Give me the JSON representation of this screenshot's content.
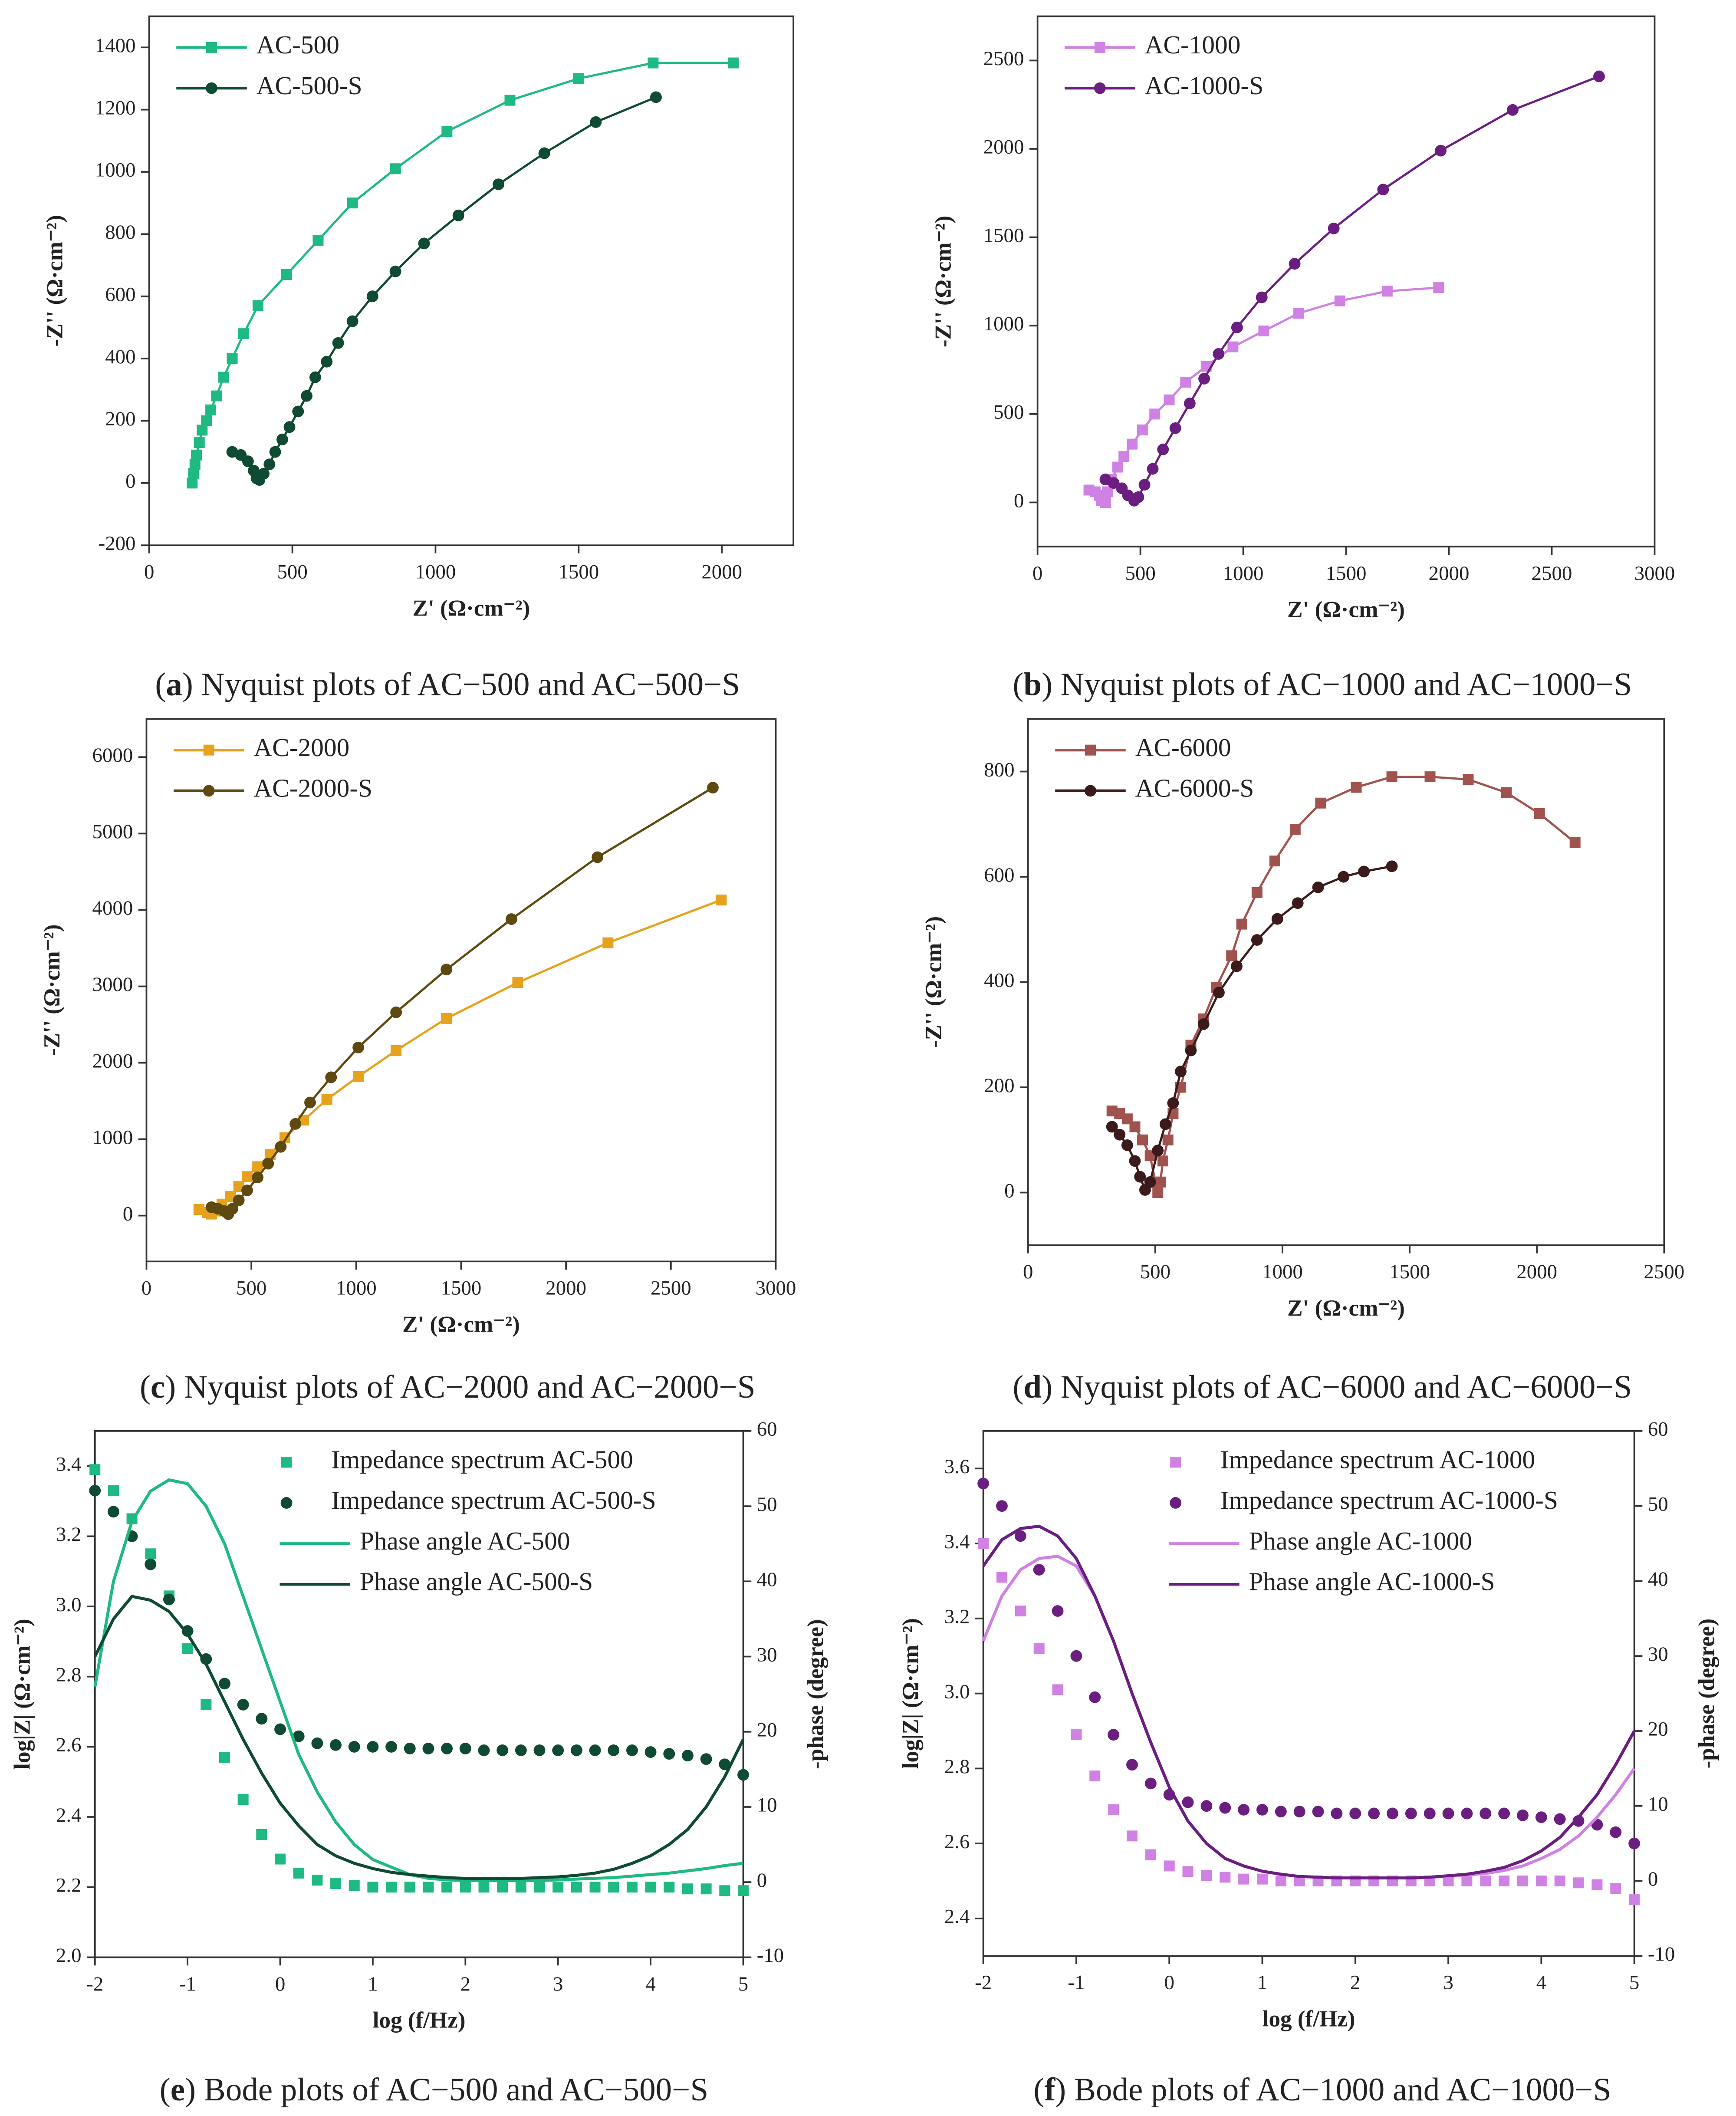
{
  "chart_data": [
    {
      "type": "line",
      "legend": "upper left",
      "caption_parts": [
        "(",
        "a",
        ") Nyquist plots of AC−500 and AC−500−S"
      ],
      "xlabel": "Z' (Ω·cm⁻²)",
      "ylabel": "-Z'' (Ω·cm⁻²)",
      "xlim": [
        0,
        2250
      ],
      "xticks": [
        0,
        500,
        1000,
        1500,
        2000
      ],
      "ylim": [
        -200,
        1500
      ],
      "yticks": [
        -200,
        0,
        200,
        400,
        600,
        800,
        1000,
        1200,
        1400
      ],
      "series": [
        {
          "name": "AC-500",
          "color": "#1fb982",
          "marker": "square",
          "mode": "lines+markers",
          "x": [
            150,
            155,
            160,
            165,
            175,
            185,
            200,
            215,
            235,
            260,
            290,
            330,
            380,
            480,
            590,
            710,
            860,
            1040,
            1260,
            1500,
            1760,
            2040
          ],
          "values": [
            0,
            30,
            60,
            90,
            130,
            170,
            200,
            235,
            280,
            340,
            400,
            480,
            570,
            670,
            780,
            900,
            1010,
            1130,
            1230,
            1300,
            1350,
            1350
          ]
        },
        {
          "name": "AC-500-S",
          "color": "#0f4a33",
          "marker": "circle",
          "mode": "lines+markers",
          "x": [
            290,
            320,
            345,
            365,
            375,
            385,
            400,
            420,
            440,
            465,
            490,
            520,
            550,
            580,
            620,
            660,
            710,
            780,
            860,
            960,
            1080,
            1220,
            1380,
            1560,
            1770
          ],
          "values": [
            100,
            90,
            70,
            40,
            15,
            10,
            30,
            60,
            100,
            140,
            180,
            230,
            280,
            340,
            390,
            450,
            520,
            600,
            680,
            770,
            860,
            960,
            1060,
            1160,
            1240
          ]
        }
      ]
    },
    {
      "type": "line",
      "legend": "upper left",
      "caption_parts": [
        "(",
        "b",
        ") Nyquist plots of AC−1000 and AC−1000−S"
      ],
      "xlabel": "Z' (Ω·cm⁻²)",
      "ylabel": "-Z'' (Ω·cm⁻²)",
      "xlim": [
        0,
        3000
      ],
      "xticks": [
        0,
        500,
        1000,
        1500,
        2000,
        2500,
        3000
      ],
      "ylim": [
        -250,
        2750
      ],
      "yticks": [
        0,
        500,
        1000,
        1500,
        2000,
        2500
      ],
      "series": [
        {
          "name": "AC-1000",
          "color": "#cf82e3",
          "marker": "square",
          "mode": "lines+markers",
          "x": [
            250,
            280,
            300,
            310,
            330,
            340,
            360,
            390,
            420,
            460,
            510,
            570,
            640,
            720,
            820,
            950,
            1100,
            1270,
            1470,
            1700,
            1950
          ],
          "values": [
            70,
            60,
            40,
            10,
            0,
            60,
            130,
            200,
            260,
            330,
            410,
            500,
            580,
            680,
            770,
            880,
            970,
            1070,
            1140,
            1195,
            1215
          ]
        },
        {
          "name": "AC-1000-S",
          "color": "#6a1f80",
          "marker": "circle",
          "mode": "lines+markers",
          "x": [
            330,
            370,
            410,
            440,
            470,
            490,
            520,
            560,
            610,
            670,
            740,
            810,
            880,
            970,
            1090,
            1250,
            1440,
            1680,
            1960,
            2310,
            2730
          ],
          "values": [
            130,
            110,
            80,
            40,
            10,
            30,
            100,
            190,
            300,
            420,
            560,
            700,
            840,
            990,
            1160,
            1350,
            1550,
            1770,
            1990,
            2220,
            2410
          ]
        }
      ]
    },
    {
      "type": "line",
      "legend": "upper left",
      "caption_parts": [
        "(",
        "c",
        ") Nyquist plots of AC−2000 and AC−2000−S"
      ],
      "xlabel": "Z' (Ω·cm⁻²)",
      "ylabel": "-Z'' (Ω·cm⁻²)",
      "xlim": [
        0,
        3000
      ],
      "xticks": [
        0,
        500,
        1000,
        1500,
        2000,
        2500,
        3000
      ],
      "ylim": [
        -600,
        6500
      ],
      "yticks": [
        0,
        1000,
        2000,
        3000,
        4000,
        5000,
        6000
      ],
      "series": [
        {
          "name": "AC-2000",
          "color": "#e6a21c",
          "marker": "square",
          "mode": "lines+markers",
          "x": [
            250,
            290,
            310,
            330,
            360,
            400,
            440,
            480,
            530,
            590,
            660,
            750,
            860,
            1010,
            1190,
            1430,
            1770,
            2200,
            2740
          ],
          "values": [
            80,
            40,
            20,
            60,
            150,
            250,
            380,
            510,
            640,
            800,
            1020,
            1250,
            1520,
            1820,
            2160,
            2580,
            3050,
            3570,
            4130
          ]
        },
        {
          "name": "AC-2000-S",
          "color": "#5e4910",
          "marker": "circle",
          "mode": "lines+markers",
          "x": [
            310,
            340,
            370,
            390,
            410,
            440,
            480,
            530,
            580,
            640,
            710,
            780,
            880,
            1010,
            1190,
            1430,
            1740,
            2150,
            2700
          ],
          "values": [
            110,
            90,
            60,
            20,
            90,
            200,
            330,
            500,
            680,
            900,
            1200,
            1480,
            1810,
            2200,
            2660,
            3220,
            3880,
            4690,
            5600
          ]
        }
      ]
    },
    {
      "type": "line",
      "legend": "upper left",
      "caption_parts": [
        "(",
        "d",
        ") Nyquist plots of AC−6000 and AC−6000−S"
      ],
      "xlabel": "Z' (Ω·cm⁻²)",
      "ylabel": "-Z'' (Ω·cm⁻²)",
      "xlim": [
        0,
        2500
      ],
      "xticks": [
        0,
        500,
        1000,
        1500,
        2000,
        2500
      ],
      "ylim": [
        -100,
        900
      ],
      "yticks": [
        0,
        200,
        400,
        600,
        800
      ],
      "series": [
        {
          "name": "AC-6000",
          "color": "#a0524f",
          "marker": "square",
          "mode": "lines+markers",
          "x": [
            330,
            360,
            390,
            420,
            450,
            480,
            500,
            510,
            520,
            530,
            550,
            570,
            600,
            640,
            690,
            740,
            800,
            840,
            900,
            970,
            1050,
            1150,
            1290,
            1430,
            1580,
            1730,
            1880,
            2010,
            2150
          ],
          "values": [
            155,
            150,
            140,
            125,
            100,
            70,
            20,
            0,
            20,
            60,
            100,
            150,
            200,
            280,
            330,
            390,
            450,
            510,
            570,
            630,
            690,
            740,
            770,
            790,
            790,
            785,
            760,
            720,
            665
          ]
        },
        {
          "name": "AC-6000-S",
          "color": "#3a1a1a",
          "marker": "circle",
          "mode": "lines+markers",
          "x": [
            330,
            360,
            390,
            420,
            440,
            460,
            480,
            510,
            540,
            570,
            600,
            640,
            690,
            750,
            820,
            900,
            980,
            1060,
            1140,
            1240,
            1320,
            1430
          ],
          "values": [
            125,
            110,
            90,
            60,
            30,
            5,
            20,
            80,
            130,
            170,
            230,
            270,
            320,
            380,
            430,
            480,
            520,
            550,
            580,
            600,
            610,
            620
          ]
        }
      ]
    },
    {
      "type": "line",
      "legend": "upper center",
      "caption_parts": [
        "(",
        "e",
        ") Bode plots of AC−500 and AC−500−S"
      ],
      "xlabel": "log (f/Hz)",
      "ylabel": "log|Z| (Ω·cm⁻²)",
      "y2label": "-phase (degree)",
      "xlim": [
        -2,
        5
      ],
      "xticks": [
        -2,
        -1,
        0,
        1,
        2,
        3,
        4,
        5
      ],
      "ylim": [
        2.0,
        3.5
      ],
      "yticks": [
        {
          "value": 2,
          "label": "2.0"
        },
        2.2,
        2.4,
        2.6,
        2.8,
        {
          "value": 3,
          "label": "3.0"
        },
        3.2,
        3.4
      ],
      "y2lim": [
        -10,
        60
      ],
      "y2ticks": [
        -10,
        0,
        10,
        20,
        30,
        40,
        50,
        60
      ],
      "x": [
        -2,
        -1.8,
        -1.6,
        -1.4,
        -1.2,
        -1,
        -0.8,
        -0.6,
        -0.4,
        -0.2,
        0,
        0.2,
        0.4,
        0.6,
        0.8,
        1,
        1.2,
        1.4,
        1.6,
        1.8,
        2,
        2.2,
        2.4,
        2.6,
        2.8,
        3,
        3.2,
        3.4,
        3.6,
        3.8,
        4,
        4.2,
        4.4,
        4.6,
        4.8,
        5
      ],
      "series": [
        {
          "name": "Impedance spectrum AC-500",
          "color": "#1fb982",
          "marker": "square",
          "mode": "markers",
          "values": [
            3.39,
            3.33,
            3.25,
            3.15,
            3.03,
            2.88,
            2.72,
            2.57,
            2.45,
            2.35,
            2.28,
            2.24,
            2.22,
            2.21,
            2.205,
            2.2,
            2.2,
            2.2,
            2.2,
            2.2,
            2.2,
            2.2,
            2.2,
            2.2,
            2.2,
            2.2,
            2.2,
            2.2,
            2.2,
            2.2,
            2.2,
            2.2,
            2.195,
            2.195,
            2.19,
            2.19
          ]
        },
        {
          "name": "Impedance spectrum AC-500-S",
          "color": "#0f4a33",
          "marker": "circle",
          "mode": "markers",
          "values": [
            3.33,
            3.27,
            3.2,
            3.12,
            3.02,
            2.93,
            2.85,
            2.78,
            2.72,
            2.68,
            2.65,
            2.63,
            2.61,
            2.605,
            2.6,
            2.6,
            2.6,
            2.595,
            2.595,
            2.595,
            2.595,
            2.59,
            2.59,
            2.59,
            2.59,
            2.59,
            2.59,
            2.59,
            2.59,
            2.59,
            2.585,
            2.58,
            2.575,
            2.565,
            2.55,
            2.52
          ]
        },
        {
          "name": "Phase angle AC-500",
          "color": "#1fb982",
          "mode": "lines",
          "axis": "y2",
          "values": [
            26,
            40,
            48,
            52,
            53.5,
            53,
            50,
            45,
            38,
            31,
            24,
            17,
            12,
            8,
            5,
            3,
            2,
            1,
            0.5,
            0.3,
            0.2,
            0.2,
            0.2,
            0.2,
            0.2,
            0.3,
            0.4,
            0.5,
            0.6,
            0.8,
            1,
            1.2,
            1.5,
            1.8,
            2.2,
            2.5
          ]
        },
        {
          "name": "Phase angle AC-500-S",
          "color": "#0f4a33",
          "mode": "lines",
          "axis": "y2",
          "values": [
            30,
            35,
            38,
            37.5,
            36,
            33,
            29,
            24,
            19,
            14.5,
            10.5,
            7.5,
            5,
            3.5,
            2.5,
            1.8,
            1.3,
            1,
            0.8,
            0.6,
            0.5,
            0.5,
            0.5,
            0.5,
            0.6,
            0.7,
            0.9,
            1.2,
            1.7,
            2.5,
            3.5,
            5,
            7,
            10,
            14,
            19
          ]
        }
      ]
    },
    {
      "type": "line",
      "legend": "upper center",
      "caption_parts": [
        "(",
        "f",
        ") Bode plots of AC−1000 and AC−1000−S"
      ],
      "xlabel": "log (f/Hz)",
      "ylabel": "log|Z| (Ω·cm⁻²)",
      "y2label": "-phase (degree)",
      "xlim": [
        -2,
        5
      ],
      "xticks": [
        -2,
        -1,
        0,
        1,
        2,
        3,
        4,
        5
      ],
      "ylim": [
        2.3,
        3.7
      ],
      "yticks": [
        2.4,
        2.6,
        2.8,
        {
          "value": 3,
          "label": "3.0"
        },
        3.2,
        3.4,
        3.6
      ],
      "y2lim": [
        -10,
        60
      ],
      "y2ticks": [
        -10,
        0,
        10,
        20,
        30,
        40,
        50,
        60
      ],
      "x": [
        -2,
        -1.8,
        -1.6,
        -1.4,
        -1.2,
        -1,
        -0.8,
        -0.6,
        -0.4,
        -0.2,
        0,
        0.2,
        0.4,
        0.6,
        0.8,
        1,
        1.2,
        1.4,
        1.6,
        1.8,
        2,
        2.2,
        2.4,
        2.6,
        2.8,
        3,
        3.2,
        3.4,
        3.6,
        3.8,
        4,
        4.2,
        4.4,
        4.6,
        4.8,
        5
      ],
      "series": [
        {
          "name": "Impedance spectrum AC-1000",
          "color": "#cf82e3",
          "marker": "square",
          "mode": "markers",
          "values": [
            3.4,
            3.31,
            3.22,
            3.12,
            3.01,
            2.89,
            2.78,
            2.69,
            2.62,
            2.57,
            2.54,
            2.525,
            2.515,
            2.51,
            2.505,
            2.505,
            2.5,
            2.5,
            2.5,
            2.5,
            2.5,
            2.5,
            2.5,
            2.5,
            2.5,
            2.5,
            2.5,
            2.5,
            2.5,
            2.5,
            2.5,
            2.5,
            2.495,
            2.49,
            2.48,
            2.45
          ]
        },
        {
          "name": "Impedance spectrum AC-1000-S",
          "color": "#6a1f80",
          "marker": "circle",
          "mode": "markers",
          "values": [
            3.56,
            3.5,
            3.42,
            3.33,
            3.22,
            3.1,
            2.99,
            2.89,
            2.81,
            2.76,
            2.73,
            2.71,
            2.7,
            2.695,
            2.69,
            2.69,
            2.685,
            2.685,
            2.685,
            2.68,
            2.68,
            2.68,
            2.68,
            2.68,
            2.68,
            2.68,
            2.68,
            2.68,
            2.68,
            2.675,
            2.67,
            2.665,
            2.66,
            2.65,
            2.63,
            2.6
          ]
        },
        {
          "name": "Phase angle AC-1000",
          "color": "#cf82e3",
          "mode": "lines",
          "axis": "y2",
          "values": [
            32,
            38,
            41.5,
            43,
            43.3,
            42,
            38,
            32,
            25,
            18.5,
            12.5,
            8,
            5,
            3,
            2,
            1.3,
            0.9,
            0.6,
            0.5,
            0.4,
            0.4,
            0.4,
            0.4,
            0.4,
            0.5,
            0.6,
            0.8,
            1,
            1.4,
            2,
            3,
            4.2,
            6,
            8.5,
            11.5,
            15
          ]
        },
        {
          "name": "Phase angle AC-1000-S",
          "color": "#6a1f80",
          "mode": "lines",
          "axis": "y2",
          "values": [
            42,
            45.5,
            47,
            47.3,
            46,
            43,
            38,
            32,
            25,
            18.5,
            12.5,
            8,
            5,
            3,
            2,
            1.3,
            0.9,
            0.6,
            0.5,
            0.4,
            0.4,
            0.4,
            0.4,
            0.4,
            0.5,
            0.7,
            0.9,
            1.3,
            1.8,
            2.7,
            4,
            5.8,
            8.5,
            11.5,
            15.5,
            20
          ]
        }
      ]
    }
  ]
}
